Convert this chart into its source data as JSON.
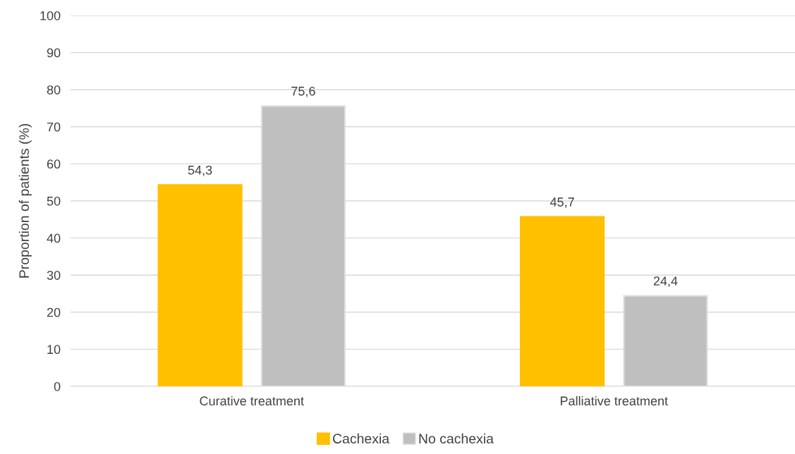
{
  "chart_data": {
    "type": "bar",
    "ylabel": "Proportion of patients (%)",
    "categories": [
      "Curative treatment",
      "Palliative treatment"
    ],
    "series": [
      {
        "name": "Cachexia",
        "color": "#ffc000",
        "values": [
          54.3,
          45.7
        ],
        "value_labels": [
          "54,3",
          "45,7"
        ]
      },
      {
        "name": "No cachexia",
        "color": "#bfbfbf",
        "values": [
          75.6,
          24.4
        ],
        "value_labels": [
          "75,6",
          "24,4"
        ]
      }
    ],
    "ylim": [
      0,
      100
    ],
    "yticks": [
      0,
      10,
      20,
      30,
      40,
      50,
      60,
      70,
      80,
      90,
      100
    ],
    "grid": "y",
    "legend": "bottom"
  }
}
